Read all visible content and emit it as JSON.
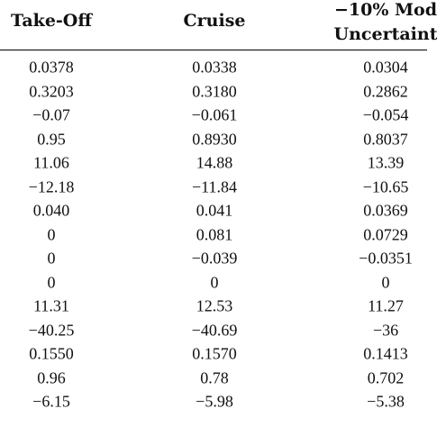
{
  "table": {
    "header": [
      [
        "Take-Off"
      ],
      [
        "Cruise"
      ],
      [
        "−10% Mod",
        "Uncertaint"
      ]
    ],
    "rows": [
      [
        "0.0378",
        "0.0338",
        "0.0304"
      ],
      [
        "0.3203",
        "0.3180",
        "0.2862"
      ],
      [
        "−0.07",
        "−0.061",
        "−0.054"
      ],
      [
        "0.95",
        "0.8930",
        "0.8037"
      ],
      [
        "11.06",
        "14.88",
        "13.39"
      ],
      [
        "−12.18",
        "−11.84",
        "−10.65"
      ],
      [
        "0.040",
        "0.041",
        "0.0369"
      ],
      [
        "0",
        "0.081",
        "0.0729"
      ],
      [
        "0",
        "−0.039",
        "−0.0351"
      ],
      [
        "0",
        "0",
        "0"
      ],
      [
        "11.31",
        "12.53",
        "11.27"
      ],
      [
        "−40.25",
        "−40.69",
        "−36"
      ],
      [
        "0.1550",
        "0.1570",
        "0.1413"
      ],
      [
        "0.96",
        "0.78",
        "0.702"
      ],
      [
        "−6.15",
        "−5.98",
        "−5.38"
      ]
    ]
  }
}
